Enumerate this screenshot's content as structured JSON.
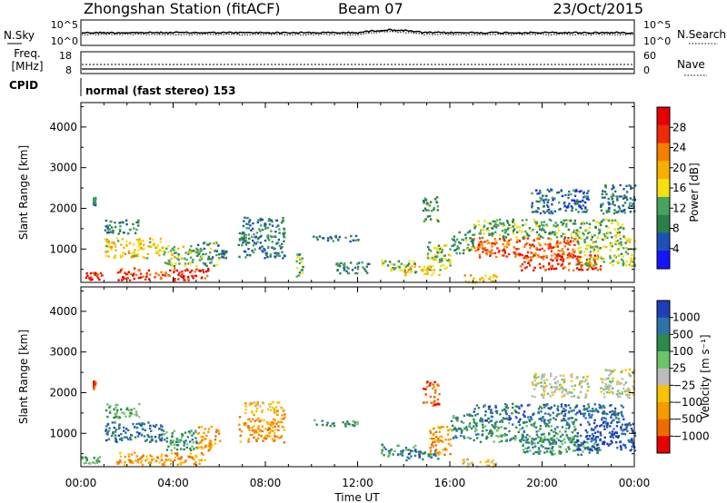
{
  "header": {
    "station": "Zhongshan Station (fitACF)",
    "beam": "Beam 07",
    "date": "23/Oct/2015"
  },
  "top_strip": {
    "left_label": "N.Sky",
    "right_label": "N.Search",
    "left_ticks": [
      "10^5",
      "10^0"
    ],
    "right_ticks": [
      "10^5",
      "10^0"
    ]
  },
  "freq_strip": {
    "left_label_top": "Freq.",
    "left_label_unit": "[MHz]",
    "left_ticks": [
      "18",
      "8"
    ],
    "right_label": "Nave",
    "right_ticks": [
      "60",
      "0"
    ],
    "cpid_label": "CPID",
    "mode_text": "normal (fast stereo) 153"
  },
  "colors": {
    "power_scale": [
      "#1414ff",
      "#1f4fb8",
      "#2b7f4c",
      "#45a35f",
      "#f6e010",
      "#f6b100",
      "#f57f00",
      "#ef2a08",
      "#e60000"
    ],
    "velocity_scale": [
      "#1f3fb8",
      "#2d73a6",
      "#2b8a4c",
      "#6dc36a",
      "#bcbcbc",
      "#f6c400",
      "#f59b00",
      "#f06a00",
      "#e60000"
    ]
  },
  "chart_data": [
    {
      "type": "heatmap",
      "name": "power-panel",
      "ylabel": "Slant Range [km]",
      "ylim": [
        180,
        4600
      ],
      "yticks": [
        "1000",
        "2000",
        "3000",
        "4000"
      ],
      "xlim": [
        0,
        24
      ],
      "colorbar": {
        "label": "Power [dB]",
        "ticks": [
          "4",
          "8",
          "12",
          "16",
          "20",
          "24",
          "28"
        ],
        "range": [
          0,
          32
        ]
      },
      "bands": [
        {
          "t0": 0.0,
          "t1": 0.9,
          "r0": 250,
          "r1": 450,
          "level": 30
        },
        {
          "t0": 0.5,
          "t1": 0.6,
          "r0": 2100,
          "r1": 2300,
          "level": 10
        },
        {
          "t0": 1.0,
          "t1": 3.5,
          "r0": 800,
          "r1": 1300,
          "level": 18
        },
        {
          "t0": 1.0,
          "t1": 2.5,
          "r0": 1400,
          "r1": 1750,
          "level": 8
        },
        {
          "t0": 1.5,
          "t1": 5.5,
          "r0": 250,
          "r1": 550,
          "level": 28
        },
        {
          "t0": 3.5,
          "t1": 5.0,
          "r0": 600,
          "r1": 1100,
          "level": 14
        },
        {
          "t0": 5.0,
          "t1": 6.0,
          "r0": 600,
          "r1": 1200,
          "level": 10
        },
        {
          "t0": 6.0,
          "t1": 6.3,
          "r0": 800,
          "r1": 1000,
          "level": 8
        },
        {
          "t0": 6.8,
          "t1": 8.8,
          "r0": 800,
          "r1": 1500,
          "level": 8
        },
        {
          "t0": 7.0,
          "t1": 8.8,
          "r0": 1500,
          "r1": 1800,
          "level": 8
        },
        {
          "t0": 9.3,
          "t1": 9.6,
          "r0": 300,
          "r1": 900,
          "level": 12
        },
        {
          "t0": 10.0,
          "t1": 12.0,
          "r0": 1200,
          "r1": 1350,
          "level": 6
        },
        {
          "t0": 11.0,
          "t1": 12.5,
          "r0": 400,
          "r1": 700,
          "level": 8
        },
        {
          "t0": 13.0,
          "t1": 14.5,
          "r0": 450,
          "r1": 750,
          "level": 12
        },
        {
          "t0": 14.0,
          "t1": 15.5,
          "r0": 350,
          "r1": 600,
          "level": 18
        },
        {
          "t0": 15.0,
          "t1": 16.0,
          "r0": 500,
          "r1": 1200,
          "level": 14
        },
        {
          "t0": 14.8,
          "t1": 15.5,
          "r0": 1700,
          "r1": 2300,
          "level": 10
        },
        {
          "t0": 16.0,
          "t1": 17.0,
          "r0": 900,
          "r1": 1500,
          "level": 10
        },
        {
          "t0": 16.5,
          "t1": 18.0,
          "r0": 200,
          "r1": 400,
          "level": 20
        },
        {
          "t0": 17.0,
          "t1": 21.5,
          "r0": 800,
          "r1": 1300,
          "level": 26
        },
        {
          "t0": 17.0,
          "t1": 23.5,
          "r0": 1300,
          "r1": 1750,
          "level": 12
        },
        {
          "t0": 19.0,
          "t1": 22.5,
          "r0": 500,
          "r1": 900,
          "level": 28
        },
        {
          "t0": 21.5,
          "t1": 24.0,
          "r0": 600,
          "r1": 1300,
          "level": 14
        },
        {
          "t0": 22.5,
          "t1": 24.0,
          "r0": 1900,
          "r1": 2600,
          "level": 7
        },
        {
          "t0": 19.5,
          "t1": 22.0,
          "r0": 1900,
          "r1": 2500,
          "level": 6
        }
      ]
    },
    {
      "type": "heatmap",
      "name": "velocity-panel",
      "ylabel": "Slant Range [km]",
      "ylim": [
        180,
        4600
      ],
      "yticks": [
        "1000",
        "2000",
        "3000",
        "4000"
      ],
      "xlim": [
        0,
        24
      ],
      "xticks": [
        "00:00",
        "04:00",
        "08:00",
        "12:00",
        "16:00",
        "20:00",
        "00:00"
      ],
      "xlabel": "Time UT",
      "colorbar": {
        "label": "Velocity [m s⁻¹]",
        "ticks": [
          "1000",
          "500",
          "100",
          "25",
          "−25",
          "−100",
          "−500",
          "−1000"
        ]
      },
      "bands": [
        {
          "t0": 0.0,
          "t1": 0.9,
          "r0": 250,
          "r1": 450,
          "level": 3
        },
        {
          "t0": 0.5,
          "t1": 0.6,
          "r0": 2100,
          "r1": 2300,
          "level": 7
        },
        {
          "t0": 1.0,
          "t1": 3.5,
          "r0": 800,
          "r1": 1300,
          "level": 1
        },
        {
          "t0": 1.0,
          "t1": 2.5,
          "r0": 1400,
          "r1": 1750,
          "level": 3
        },
        {
          "t0": 1.5,
          "t1": 5.5,
          "r0": 250,
          "r1": 550,
          "level": 6
        },
        {
          "t0": 3.5,
          "t1": 5.0,
          "r0": 600,
          "r1": 1100,
          "level": 2
        },
        {
          "t0": 5.0,
          "t1": 6.0,
          "r0": 600,
          "r1": 1200,
          "level": 6
        },
        {
          "t0": 6.8,
          "t1": 8.8,
          "r0": 800,
          "r1": 1500,
          "level": 6
        },
        {
          "t0": 7.0,
          "t1": 8.8,
          "r0": 1500,
          "r1": 1800,
          "level": 5
        },
        {
          "t0": 10.0,
          "t1": 12.0,
          "r0": 1200,
          "r1": 1350,
          "level": 2
        },
        {
          "t0": 13.0,
          "t1": 14.5,
          "r0": 450,
          "r1": 750,
          "level": 2
        },
        {
          "t0": 14.0,
          "t1": 15.5,
          "r0": 350,
          "r1": 600,
          "level": 1
        },
        {
          "t0": 15.0,
          "t1": 16.0,
          "r0": 500,
          "r1": 1200,
          "level": 6
        },
        {
          "t0": 14.8,
          "t1": 15.5,
          "r0": 1700,
          "r1": 2300,
          "level": 7
        },
        {
          "t0": 16.0,
          "t1": 17.0,
          "r0": 900,
          "r1": 1500,
          "level": 2
        },
        {
          "t0": 16.5,
          "t1": 18.0,
          "r0": 200,
          "r1": 400,
          "level": 5
        },
        {
          "t0": 17.0,
          "t1": 21.5,
          "r0": 800,
          "r1": 1300,
          "level": 2
        },
        {
          "t0": 17.0,
          "t1": 23.5,
          "r0": 1300,
          "r1": 1750,
          "level": 1
        },
        {
          "t0": 19.0,
          "t1": 22.5,
          "r0": 500,
          "r1": 900,
          "level": 2
        },
        {
          "t0": 21.5,
          "t1": 24.0,
          "r0": 600,
          "r1": 1300,
          "level": 0
        },
        {
          "t0": 22.5,
          "t1": 24.0,
          "r0": 1900,
          "r1": 2600,
          "level": 4
        },
        {
          "t0": 19.5,
          "t1": 22.0,
          "r0": 1900,
          "r1": 2500,
          "level": 4
        }
      ]
    }
  ]
}
